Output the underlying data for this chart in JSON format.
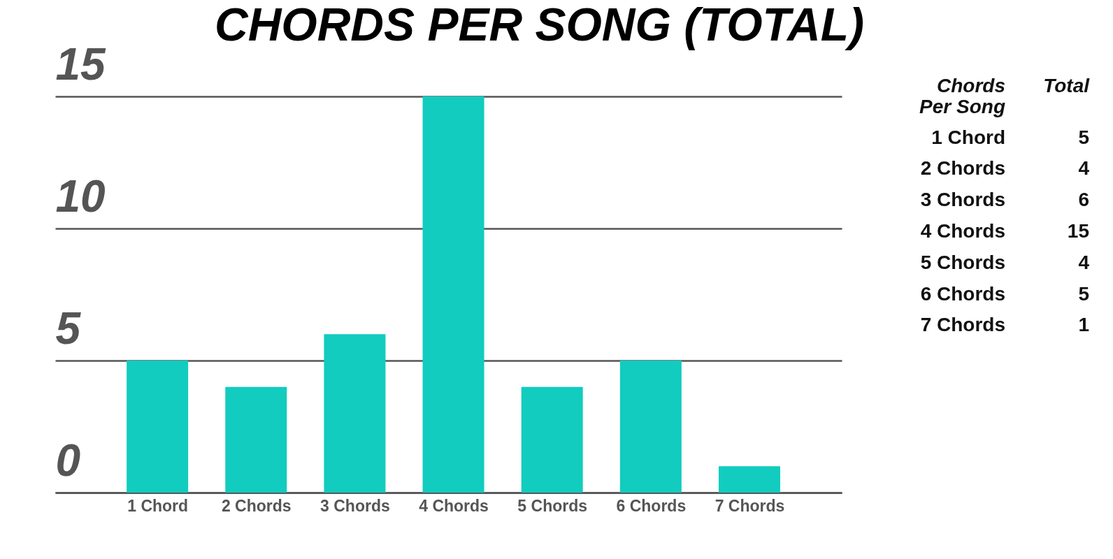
{
  "chart_data": {
    "type": "bar",
    "title": "CHORDS PER SONG (TOTAL)",
    "categories": [
      "1 Chord",
      "2 Chords",
      "3 Chords",
      "4 Chords",
      "5 Chords",
      "6 Chords",
      "7 Chords"
    ],
    "values": [
      5,
      4,
      6,
      15,
      4,
      5,
      1
    ],
    "color": "#11ccbf",
    "ylim": [
      0,
      15
    ],
    "yticks": [
      0,
      5,
      10,
      15
    ],
    "grid": "y",
    "annotations": [
      "Chords Per Song",
      "Total",
      "5",
      "4",
      "6",
      "15",
      "4",
      "5",
      "1"
    ]
  }
}
